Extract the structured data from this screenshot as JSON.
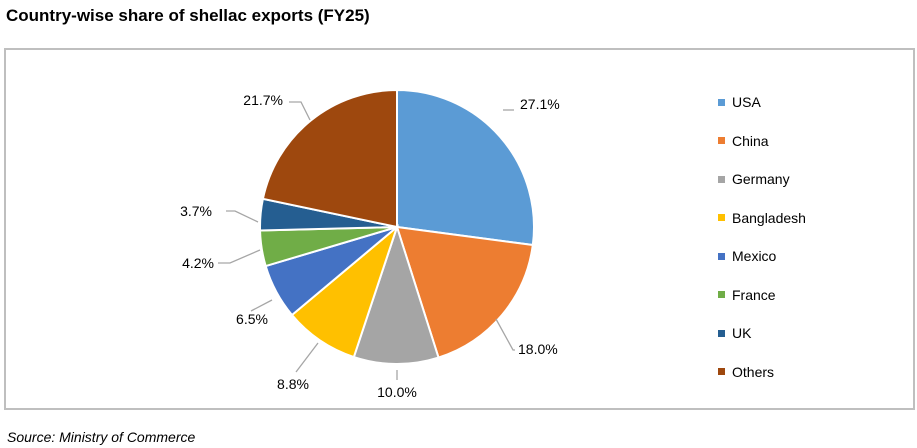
{
  "title": "Country-wise share of shellac exports (FY25)",
  "source": "Source: Ministry of Commerce",
  "chart_data": {
    "type": "pie",
    "title": "Country-wise share of shellac exports (FY25)",
    "categories": [
      "USA",
      "China",
      "Germany",
      "Bangladesh",
      "Mexico",
      "France",
      "UK",
      "Others"
    ],
    "values": [
      27.1,
      18.0,
      10.0,
      8.8,
      6.5,
      4.2,
      3.7,
      21.7
    ],
    "labels": [
      "27.1%",
      "18.0%",
      "10.0%",
      "8.8%",
      "6.5%",
      "4.2%",
      "3.7%",
      "21.7%"
    ],
    "colors": [
      "#5b9bd5",
      "#ed7d31",
      "#a5a5a5",
      "#ffc000",
      "#4472c4",
      "#70ad47",
      "#255e91",
      "#9e480e"
    ],
    "start_angle_deg": 0,
    "direction": "clockwise",
    "legend_position": "right",
    "unit": "%"
  },
  "legend": {
    "items": [
      {
        "label": "USA",
        "color": "#5b9bd5"
      },
      {
        "label": "China",
        "color": "#ed7d31"
      },
      {
        "label": "Germany",
        "color": "#a5a5a5"
      },
      {
        "label": "Bangladesh",
        "color": "#ffc000"
      },
      {
        "label": "Mexico",
        "color": "#4472c4"
      },
      {
        "label": "France",
        "color": "#70ad47"
      },
      {
        "label": "UK",
        "color": "#255e91"
      },
      {
        "label": "Others",
        "color": "#9e480e"
      }
    ]
  }
}
